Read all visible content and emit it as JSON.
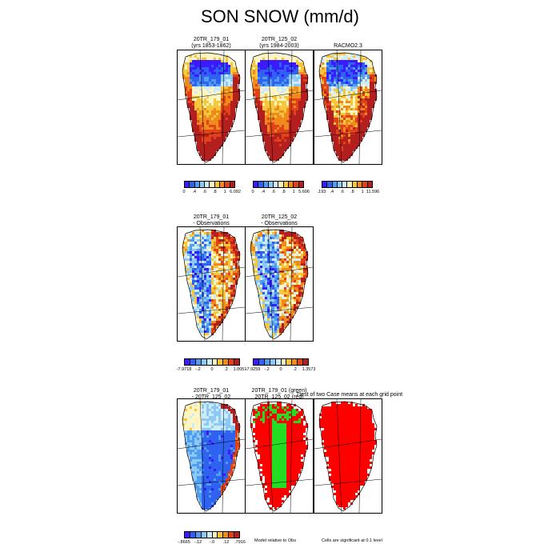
{
  "title": "SON SNOW (mm/d)",
  "colors": {
    "scale": [
      "#3a1aff",
      "#2f62f0",
      "#4f9cf0",
      "#8ccaf5",
      "#ccecfb",
      "#fff5c0",
      "#f7c63a",
      "#ef8a1c",
      "#e2421a",
      "#b31f1f"
    ],
    "land_dark": "#b31f1f",
    "significant": "#ff0000",
    "model_green": "#22dd22"
  },
  "panels": [
    {
      "id": "p1",
      "title": [
        "20TR_179_01",
        "(yrs 1853-1862)"
      ],
      "kind": "abs"
    },
    {
      "id": "p2",
      "title": [
        "20TR_125_02",
        "(yrs 1984-2003)"
      ],
      "kind": "abs"
    },
    {
      "id": "p3",
      "title": [
        "RACMO2.3"
      ],
      "kind": "racmo"
    },
    {
      "id": "p4",
      "title": [
        "20TR_179_01",
        "- Observations"
      ],
      "kind": "diff"
    },
    {
      "id": "p5",
      "title": [
        "20TR_125_02",
        "- Observations"
      ],
      "kind": "diff"
    },
    {
      "id": "p6",
      "title": [
        "20TR_179_01",
        "- 20TR_125_02"
      ],
      "kind": "casediff"
    },
    {
      "id": "p7",
      "title": [
        "20TR_179_01 (green)",
        "20TR_125_02 (red)"
      ],
      "kind": "green"
    },
    {
      "id": "p8",
      "title": [
        "Ttest of two Case means at each grid point"
      ],
      "kind": "sig"
    }
  ],
  "colorbars": [
    {
      "id": "cb1",
      "ticks": [
        "0",
        ".4",
        ".6",
        ".8",
        "1",
        "6.092"
      ]
    },
    {
      "id": "cb2",
      "ticks": [
        "0",
        ".4",
        ".6",
        ".8",
        "1",
        "5.606"
      ]
    },
    {
      "id": "cb3",
      "ticks": [
        ".193",
        ".4",
        ".6",
        ".8",
        "1",
        "11.596"
      ]
    },
    {
      "id": "cb4",
      "ticks": [
        "-7.9718",
        "-.2",
        "0",
        ".2",
        "1.0051"
      ]
    },
    {
      "id": "cb5",
      "ticks": [
        "-7.9259",
        "-.2",
        "0",
        ".2",
        "1.3573"
      ]
    },
    {
      "id": "cb6",
      "ticks": [
        "-.8665",
        "-.12",
        "-.0",
        ".12",
        ".7916"
      ]
    }
  ],
  "notes": {
    "model_relative": "Model relative to Obs",
    "significant": "Cells are significant at 0.1 level"
  }
}
